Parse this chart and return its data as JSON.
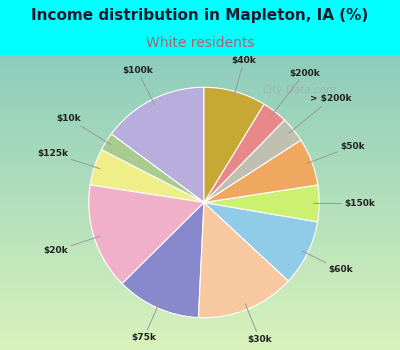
{
  "title": "Income distribution in Mapleton, IA (%)",
  "subtitle": "White residents",
  "watermark": "City-Data.com",
  "background_cyan": "#00FFFF",
  "background_chart_color": "#c8ede0",
  "title_color": "#1a1a2e",
  "subtitle_color": "#b06070",
  "labels": [
    "$100k",
    "$10k",
    "$125k",
    "$20k",
    "$75k",
    "$30k",
    "$60k",
    "$150k",
    "$50k",
    "> $200k",
    "$200k",
    "$40k"
  ],
  "values": [
    14.5,
    2.5,
    5.0,
    14.5,
    11.5,
    13.5,
    9.0,
    5.0,
    6.5,
    3.5,
    3.5,
    8.5
  ],
  "colors": [
    "#b8aedd",
    "#a8cc90",
    "#f0ee88",
    "#f0b0c8",
    "#8888cc",
    "#f8c8a0",
    "#90cce8",
    "#ccf070",
    "#f0a860",
    "#c0c0b0",
    "#e88888",
    "#c8a835"
  ],
  "title_fontsize": 11,
  "subtitle_fontsize": 10
}
